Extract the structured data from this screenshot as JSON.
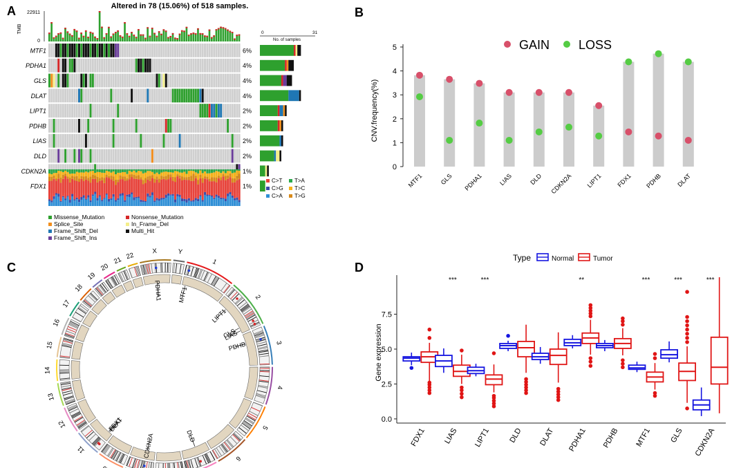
{
  "panels": {
    "A": {
      "label": "A",
      "title": "Altered in 78 (15.06%) of 518 samples.",
      "tmb_label": "TMB",
      "tmb_ticks": [
        "22911",
        "0"
      ],
      "n_samples_label": "No. of samples",
      "n_samples_ticks": [
        "0",
        "31"
      ],
      "genes": [
        {
          "name": "MTF1",
          "pct": "6%",
          "bar": [
            19,
            1,
            0,
            0,
            1,
            0,
            2
          ],
          "cells": [
            [
              3,
              "k"
            ],
            [
              4,
              "k"
            ],
            [
              5,
              "g"
            ],
            [
              6,
              "k"
            ],
            [
              7,
              "k"
            ],
            [
              8,
              "g"
            ],
            [
              9,
              "k"
            ],
            [
              10,
              "k"
            ],
            [
              11,
              "k"
            ],
            [
              12,
              "g"
            ],
            [
              13,
              "k"
            ],
            [
              14,
              "g"
            ],
            [
              15,
              "k"
            ],
            [
              16,
              "k"
            ],
            [
              17,
              "k"
            ],
            [
              18,
              "g"
            ],
            [
              19,
              "k"
            ],
            [
              20,
              "k"
            ],
            [
              21,
              "g"
            ],
            [
              22,
              "k"
            ],
            [
              23,
              "k"
            ],
            [
              24,
              "g"
            ],
            [
              25,
              "k"
            ],
            [
              26,
              "g"
            ],
            [
              27,
              "k"
            ],
            [
              28,
              "k"
            ],
            [
              29,
              "p"
            ],
            [
              30,
              "p"
            ]
          ]
        },
        {
          "name": "PDHA1",
          "pct": "4%",
          "bar": [
            14,
            1,
            0,
            1,
            0,
            0,
            3
          ],
          "cells": [
            [
              4,
              "r"
            ],
            [
              6,
              "k"
            ],
            [
              7,
              "k"
            ],
            [
              9,
              "g"
            ],
            [
              10,
              "g"
            ],
            [
              11,
              "k"
            ],
            [
              38,
              "g"
            ],
            [
              39,
              "k"
            ],
            [
              40,
              "k"
            ],
            [
              41,
              "g"
            ],
            [
              42,
              "k"
            ],
            [
              43,
              "k"
            ],
            [
              44,
              "k"
            ]
          ]
        },
        {
          "name": "GLS",
          "pct": "4%",
          "bar": [
            12,
            1,
            0,
            0,
            0,
            2,
            3
          ],
          "cells": [
            [
              0,
              "g"
            ],
            [
              1,
              "o"
            ],
            [
              2,
              "y"
            ],
            [
              4,
              "g"
            ],
            [
              6,
              "k"
            ],
            [
              7,
              "k"
            ],
            [
              8,
              "g"
            ],
            [
              14,
              "k"
            ],
            [
              15,
              "g"
            ],
            [
              16,
              "k"
            ],
            [
              18,
              "g"
            ],
            [
              19,
              "g"
            ],
            [
              47,
              "k"
            ],
            [
              48,
              "g"
            ],
            [
              50,
              "y"
            ],
            [
              51,
              "k"
            ]
          ]
        },
        {
          "name": "DLAT",
          "pct": "4%",
          "bar": [
            16,
            0,
            6,
            0,
            0,
            0,
            1
          ],
          "cells": [
            [
              13,
              "b"
            ],
            [
              14,
              "g"
            ],
            [
              27,
              "g"
            ],
            [
              36,
              "k"
            ],
            [
              43,
              "b"
            ],
            [
              54,
              "g"
            ],
            [
              55,
              "g"
            ],
            [
              56,
              "g"
            ],
            [
              57,
              "g"
            ],
            [
              58,
              "g"
            ],
            [
              59,
              "g"
            ],
            [
              60,
              "g"
            ],
            [
              61,
              "g"
            ],
            [
              62,
              "g"
            ],
            [
              63,
              "g"
            ],
            [
              64,
              "g"
            ],
            [
              65,
              "g"
            ],
            [
              66,
              "b"
            ],
            [
              67,
              "k"
            ]
          ]
        },
        {
          "name": "LIPT1",
          "pct": "2%",
          "bar": [
            10,
            1,
            2,
            1,
            0,
            0,
            1
          ],
          "cells": [
            [
              18,
              "g"
            ],
            [
              30,
              "g"
            ],
            [
              66,
              "g"
            ],
            [
              67,
              "g"
            ],
            [
              68,
              "g"
            ],
            [
              69,
              "g"
            ],
            [
              70,
              "r"
            ],
            [
              71,
              "b"
            ],
            [
              72,
              "b"
            ],
            [
              73,
              "g"
            ],
            [
              74,
              "b"
            ],
            [
              75,
              "b"
            ]
          ]
        },
        {
          "name": "PDHB",
          "pct": "2%",
          "bar": [
            10,
            1,
            0,
            1,
            0,
            0,
            1
          ],
          "cells": [
            [
              2,
              "g"
            ],
            [
              13,
              "k"
            ],
            [
              17,
              "g"
            ],
            [
              28,
              "g"
            ],
            [
              38,
              "g"
            ],
            [
              51,
              "r"
            ],
            [
              52,
              "g"
            ],
            [
              53,
              "g"
            ],
            [
              78,
              "g"
            ]
          ]
        },
        {
          "name": "LIAS",
          "pct": "2%",
          "bar": [
            11,
            0,
            1,
            0,
            0,
            0,
            1
          ],
          "cells": [
            [
              2,
              "g"
            ],
            [
              16,
              "k"
            ],
            [
              28,
              "g"
            ],
            [
              40,
              "g"
            ],
            [
              50,
              "g"
            ],
            [
              57,
              "b"
            ],
            [
              80,
              "g"
            ]
          ]
        },
        {
          "name": "DLD",
          "pct": "2%",
          "bar": [
            8,
            0,
            1,
            0,
            2,
            0,
            1
          ],
          "cells": [
            [
              4,
              "p"
            ],
            [
              7,
              "g"
            ],
            [
              11,
              "g"
            ],
            [
              13,
              "p"
            ],
            [
              14,
              "g"
            ],
            [
              18,
              "g"
            ],
            [
              45,
              "o"
            ],
            [
              80,
              "p"
            ]
          ]
        },
        {
          "name": "CDKN2A",
          "pct": "1%",
          "bar": [
            3,
            0,
            0,
            0,
            1,
            0,
            1
          ],
          "cells": [
            [
              20,
              "g"
            ],
            [
              82,
              "k"
            ],
            [
              83,
              "p"
            ]
          ]
        },
        {
          "name": "FDX1",
          "pct": "1%",
          "bar": [
            3,
            0,
            0,
            0,
            0,
            0,
            0
          ],
          "cells": [
            [
              34,
              "g"
            ]
          ]
        }
      ],
      "snv_legend": [
        {
          "label": "C>T",
          "color": "#e8433b"
        },
        {
          "label": "T>A",
          "color": "#2ba84a"
        },
        {
          "label": "C>G",
          "color": "#3b4aa8"
        },
        {
          "label": "T>C",
          "color": "#f6b21a"
        },
        {
          "label": "C>A",
          "color": "#2f8fd6"
        },
        {
          "label": "T>G",
          "color": "#d88a1a"
        }
      ],
      "mutation_legend": [
        {
          "key": "g",
          "label": "Missense_Mutation",
          "color": "#2ea02e"
        },
        {
          "key": "r",
          "label": "Nonsense_Mutation",
          "color": "#d62728"
        },
        {
          "key": "o",
          "label": "Splice_Site",
          "color": "#f28e1c"
        },
        {
          "key": "y",
          "label": "In_Frame_Del",
          "color": "#f4ee8a"
        },
        {
          "key": "b",
          "label": "Frame_Shift_Del",
          "color": "#1f77b4"
        },
        {
          "key": "k",
          "label": "Multi_Hit",
          "color": "#111111"
        },
        {
          "key": "p",
          "label": "Frame_Shift_Ins",
          "color": "#6a3d9a"
        }
      ],
      "n_columns": 84
    },
    "B": {
      "label": "B",
      "legend": [
        "GAIN",
        "LOSS"
      ],
      "colors": {
        "gain": "#d8506a",
        "loss": "#55cc44",
        "bar": "#cccccc"
      },
      "chart_data": {
        "type": "lollipop",
        "ylabel": "CNV.frequency(%)",
        "ylim": [
          0,
          5
        ],
        "yticks": [
          0,
          1,
          2,
          3,
          4,
          5
        ],
        "categories": [
          "MTF1",
          "GLS",
          "PDHA1",
          "LIAS",
          "DLD",
          "CDKN2A",
          "LIPT1",
          "FDX1",
          "PDHB",
          "DLAT"
        ],
        "series": [
          {
            "name": "GAIN",
            "values": [
              3.82,
              3.65,
              3.48,
              3.1,
              3.1,
              3.1,
              2.55,
              1.45,
              1.28,
              1.1
            ]
          },
          {
            "name": "LOSS",
            "values": [
              2.92,
              1.1,
              1.82,
              1.1,
              1.45,
              1.65,
              1.28,
              4.38,
              4.72,
              4.38
            ]
          }
        ]
      }
    },
    "C": {
      "label": "C",
      "chromosomes": [
        "1",
        "2",
        "3",
        "4",
        "5",
        "6",
        "7",
        "8",
        "9",
        "10",
        "11",
        "12",
        "13",
        "14",
        "15",
        "16",
        "17",
        "18",
        "19",
        "20",
        "21",
        "22",
        "X",
        "Y"
      ],
      "gene_labels": [
        {
          "name": "MTF1"
        },
        {
          "name": "LIPT1"
        },
        {
          "name": "GLS"
        },
        {
          "name": "PDHB"
        },
        {
          "name": "LIAS"
        },
        {
          "name": "DLD"
        },
        {
          "name": "CDKN2A"
        },
        {
          "name": "DLAT"
        },
        {
          "name": "FDX1"
        },
        {
          "name": "PDHA1"
        }
      ]
    },
    "D": {
      "label": "D",
      "legend_title": "Type",
      "legend": [
        "Normal",
        "Tumor"
      ],
      "colors": {
        "normal": "#1515e0",
        "tumor": "#e01515"
      },
      "chart_data": {
        "type": "boxplot",
        "ylabel": "Gene expression",
        "ylim": [
          -0.3,
          10.3
        ],
        "yticks": [
          0.0,
          2.5,
          5.0,
          7.5
        ],
        "ytick_labels": [
          "0.0",
          "2.5",
          "5.0",
          "7.5"
        ],
        "categories": [
          "FDX1",
          "LIAS",
          "LIPT1",
          "DLD",
          "DLAT",
          "PDHA1",
          "PDHB",
          "MTF1",
          "GLS",
          "CDKN2A"
        ],
        "significance": [
          "",
          "***",
          "***",
          "",
          "",
          "**",
          "",
          "***",
          "***",
          "***"
        ],
        "normal": [
          {
            "min": 3.85,
            "q1": 4.15,
            "median": 4.35,
            "q3": 4.45,
            "max": 4.75,
            "outliers": [
              3.65
            ]
          },
          {
            "min": 3.3,
            "q1": 3.75,
            "median": 4.15,
            "q3": 4.55,
            "max": 5.05,
            "outliers": []
          },
          {
            "min": 3.05,
            "q1": 3.25,
            "median": 3.45,
            "q3": 3.7,
            "max": 3.95,
            "outliers": []
          },
          {
            "min": 4.85,
            "q1": 5.05,
            "median": 5.25,
            "q3": 5.4,
            "max": 5.6,
            "outliers": [
              5.95
            ]
          },
          {
            "min": 3.95,
            "q1": 4.25,
            "median": 4.45,
            "q3": 4.7,
            "max": 5.15,
            "outliers": []
          },
          {
            "min": 5.05,
            "q1": 5.25,
            "median": 5.45,
            "q3": 5.7,
            "max": 6.0,
            "outliers": []
          },
          {
            "min": 4.85,
            "q1": 5.1,
            "median": 5.25,
            "q3": 5.4,
            "max": 5.65,
            "outliers": []
          },
          {
            "min": 3.35,
            "q1": 3.55,
            "median": 3.65,
            "q3": 3.85,
            "max": 4.1,
            "outliers": []
          },
          {
            "min": 4.05,
            "q1": 4.35,
            "median": 4.6,
            "q3": 4.95,
            "max": 5.55,
            "outliers": []
          },
          {
            "min": 0.2,
            "q1": 0.65,
            "median": 1.0,
            "q3": 1.35,
            "max": 2.25,
            "outliers": []
          }
        ],
        "tumor": [
          {
            "min": 2.7,
            "q1": 4.05,
            "median": 4.45,
            "q3": 4.8,
            "max": 5.45,
            "outliers": [
              1.85,
              2.05,
              2.25,
              2.45,
              2.6,
              5.8,
              6.4
            ]
          },
          {
            "min": 2.5,
            "q1": 3.05,
            "median": 3.4,
            "q3": 3.85,
            "max": 4.6,
            "outliers": [
              1.55,
              1.8,
              2.05,
              2.25,
              4.9
            ]
          },
          {
            "min": 1.9,
            "q1": 2.45,
            "median": 2.85,
            "q3": 3.15,
            "max": 3.9,
            "outliers": [
              0.9,
              1.1,
              1.3,
              1.5,
              1.65,
              4.7
            ]
          },
          {
            "min": 3.3,
            "q1": 4.45,
            "median": 5.1,
            "q3": 5.55,
            "max": 6.75,
            "outliers": [
              1.85,
              2.05,
              2.25,
              2.45,
              2.65,
              2.85
            ]
          },
          {
            "min": 2.6,
            "q1": 3.9,
            "median": 4.55,
            "q3": 5.0,
            "max": 6.2,
            "outliers": [
              1.35,
              1.55,
              1.75,
              1.95,
              2.15
            ]
          },
          {
            "min": 4.6,
            "q1": 5.4,
            "median": 5.8,
            "q3": 6.15,
            "max": 7.1,
            "outliers": [
              3.8,
              4.1,
              4.35,
              7.35,
              7.55,
              7.75,
              7.95,
              8.15
            ]
          },
          {
            "min": 4.55,
            "q1": 5.05,
            "median": 5.4,
            "q3": 5.75,
            "max": 6.5,
            "outliers": [
              3.7,
              3.95,
              4.2,
              6.75,
              7.0,
              7.2
            ]
          },
          {
            "min": 2.1,
            "q1": 2.65,
            "median": 3.0,
            "q3": 3.35,
            "max": 4.0,
            "outliers": [
              1.65,
              1.85,
              4.35,
              4.65
            ]
          },
          {
            "min": 1.15,
            "q1": 2.75,
            "median": 3.4,
            "q3": 4.0,
            "max": 5.2,
            "outliers": [
              0.75,
              5.5,
              5.8,
              6.1,
              6.4,
              6.7,
              7.0,
              7.3,
              9.1
            ]
          },
          {
            "min": 0.4,
            "q1": 2.5,
            "median": 3.7,
            "q3": 5.85,
            "max": 10.15,
            "outliers": []
          }
        ]
      }
    }
  }
}
